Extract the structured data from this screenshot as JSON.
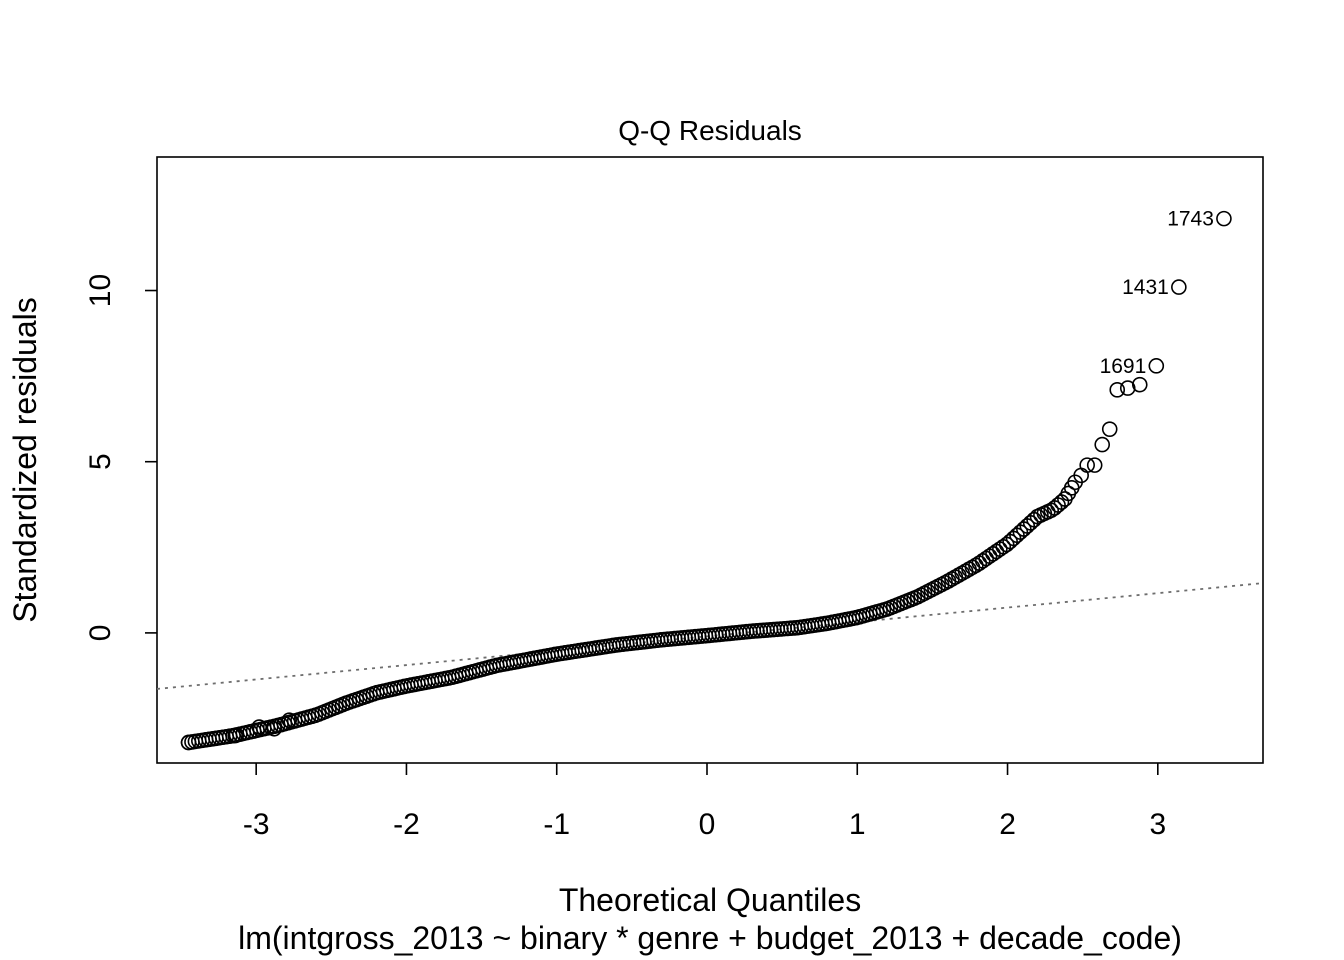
{
  "chart_data": {
    "type": "scatter",
    "title": "Q-Q Residuals",
    "xlabel": "Theoretical Quantiles",
    "sublabel": "lm(intgross_2013 ~ binary * genre + budget_2013 + decade_code)",
    "ylabel": "Standardized residuals",
    "xlim": [
      -3.66,
      3.7
    ],
    "ylim": [
      -3.8,
      13.9
    ],
    "x_ticks": [
      -3,
      -2,
      -1,
      0,
      1,
      2,
      3
    ],
    "x_tick_labels": [
      "-3",
      "-2",
      "-1",
      "0",
      "1",
      "2",
      "3"
    ],
    "y_ticks": [
      0,
      5,
      10
    ],
    "y_tick_labels": [
      "0",
      "5",
      "10"
    ],
    "grid": false,
    "legend": "none",
    "reference_line": {
      "intercept": -0.1,
      "slope": 0.42
    },
    "curve_anchors": [
      [
        -3.45,
        -3.2
      ],
      [
        -3.15,
        -3.0
      ],
      [
        -2.85,
        -2.7
      ],
      [
        -2.6,
        -2.4
      ],
      [
        -2.4,
        -2.05
      ],
      [
        -2.2,
        -1.75
      ],
      [
        -2.0,
        -1.55
      ],
      [
        -1.7,
        -1.3
      ],
      [
        -1.4,
        -0.95
      ],
      [
        -1.0,
        -0.62
      ],
      [
        -0.6,
        -0.35
      ],
      [
        -0.3,
        -0.2
      ],
      [
        0.0,
        -0.08
      ],
      [
        0.3,
        0.05
      ],
      [
        0.6,
        0.15
      ],
      [
        0.8,
        0.28
      ],
      [
        1.0,
        0.45
      ],
      [
        1.2,
        0.7
      ],
      [
        1.4,
        1.05
      ],
      [
        1.6,
        1.5
      ],
      [
        1.8,
        2.0
      ],
      [
        2.0,
        2.6
      ],
      [
        2.1,
        3.0
      ],
      [
        2.2,
        3.4
      ],
      [
        2.3,
        3.6
      ],
      [
        2.38,
        3.9
      ],
      [
        2.45,
        4.4
      ]
    ],
    "n_curve_points": 260,
    "tail_points": [
      {
        "x": -3.45,
        "y": -3.2
      },
      {
        "x": -3.14,
        "y": -3.0
      },
      {
        "x": -2.98,
        "y": -2.75
      },
      {
        "x": -2.88,
        "y": -2.8
      },
      {
        "x": -2.78,
        "y": -2.55
      },
      {
        "x": 2.49,
        "y": 4.6
      },
      {
        "x": 2.53,
        "y": 4.9
      },
      {
        "x": 2.58,
        "y": 4.9
      },
      {
        "x": 2.63,
        "y": 5.5
      },
      {
        "x": 2.68,
        "y": 5.95
      },
      {
        "x": 2.73,
        "y": 7.1
      },
      {
        "x": 2.8,
        "y": 7.15
      },
      {
        "x": 2.88,
        "y": 7.25
      },
      {
        "x": 2.99,
        "y": 7.8
      },
      {
        "x": 3.14,
        "y": 10.1
      },
      {
        "x": 3.44,
        "y": 12.1
      }
    ],
    "labeled_points": [
      {
        "label": "1743",
        "x": 3.44,
        "y": 12.1
      },
      {
        "label": "1431",
        "x": 3.14,
        "y": 10.1
      },
      {
        "label": "1691",
        "x": 2.99,
        "y": 7.8
      }
    ]
  }
}
